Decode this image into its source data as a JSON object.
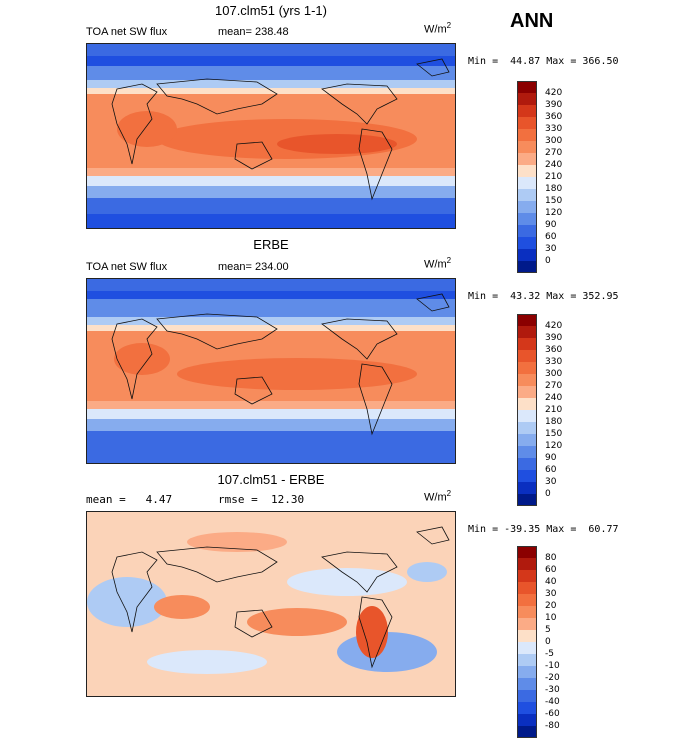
{
  "season": "ANN",
  "panels": [
    {
      "title": "107.clm51 (yrs 1-1)",
      "variable": "TOA net SW flux",
      "stat": "mean= 238.48",
      "units": "W/m",
      "units_exp": "2",
      "minmax": "Min =  44.87 Max = 366.50",
      "kind": "field"
    },
    {
      "title": "ERBE",
      "variable": "TOA net SW flux",
      "stat": "mean= 234.00",
      "units": "W/m",
      "units_exp": "2",
      "minmax": "Min =  43.32 Max = 352.95",
      "kind": "field"
    },
    {
      "title": "107.clm51 - ERBE",
      "variable": "mean =   4.47",
      "stat": "rmse =  12.30",
      "units": "W/m",
      "units_exp": "2",
      "minmax": "Min = -39.35 Max =  60.77",
      "kind": "diff"
    }
  ],
  "colorbar_field": {
    "labels": [
      "420",
      "390",
      "360",
      "330",
      "300",
      "270",
      "240",
      "210",
      "180",
      "150",
      "120",
      "90",
      "60",
      "30",
      "0"
    ],
    "colors": [
      "#8b0000",
      "#b01a0d",
      "#d4371a",
      "#e8552b",
      "#f2703f",
      "#f78c5c",
      "#fbab86",
      "#fde0c8",
      "#dbe8fb",
      "#aecbf4",
      "#86acee",
      "#5f8ce8",
      "#3b6ae2",
      "#1f4fe0",
      "#0a2fc0",
      "#001a8a"
    ]
  },
  "colorbar_diff": {
    "labels": [
      "80",
      "60",
      "40",
      "30",
      "20",
      "10",
      "5",
      "0",
      "-5",
      "-10",
      "-20",
      "-30",
      "-40",
      "-60",
      "-80"
    ],
    "colors": [
      "#8b0000",
      "#b01a0d",
      "#d4371a",
      "#e8552b",
      "#f2703f",
      "#f78c5c",
      "#fbab86",
      "#fde0c8",
      "#dbe8fb",
      "#aecbf4",
      "#86acee",
      "#5f8ce8",
      "#3b6ae2",
      "#1f4fe0",
      "#0a2fc0",
      "#001a8a"
    ]
  }
}
